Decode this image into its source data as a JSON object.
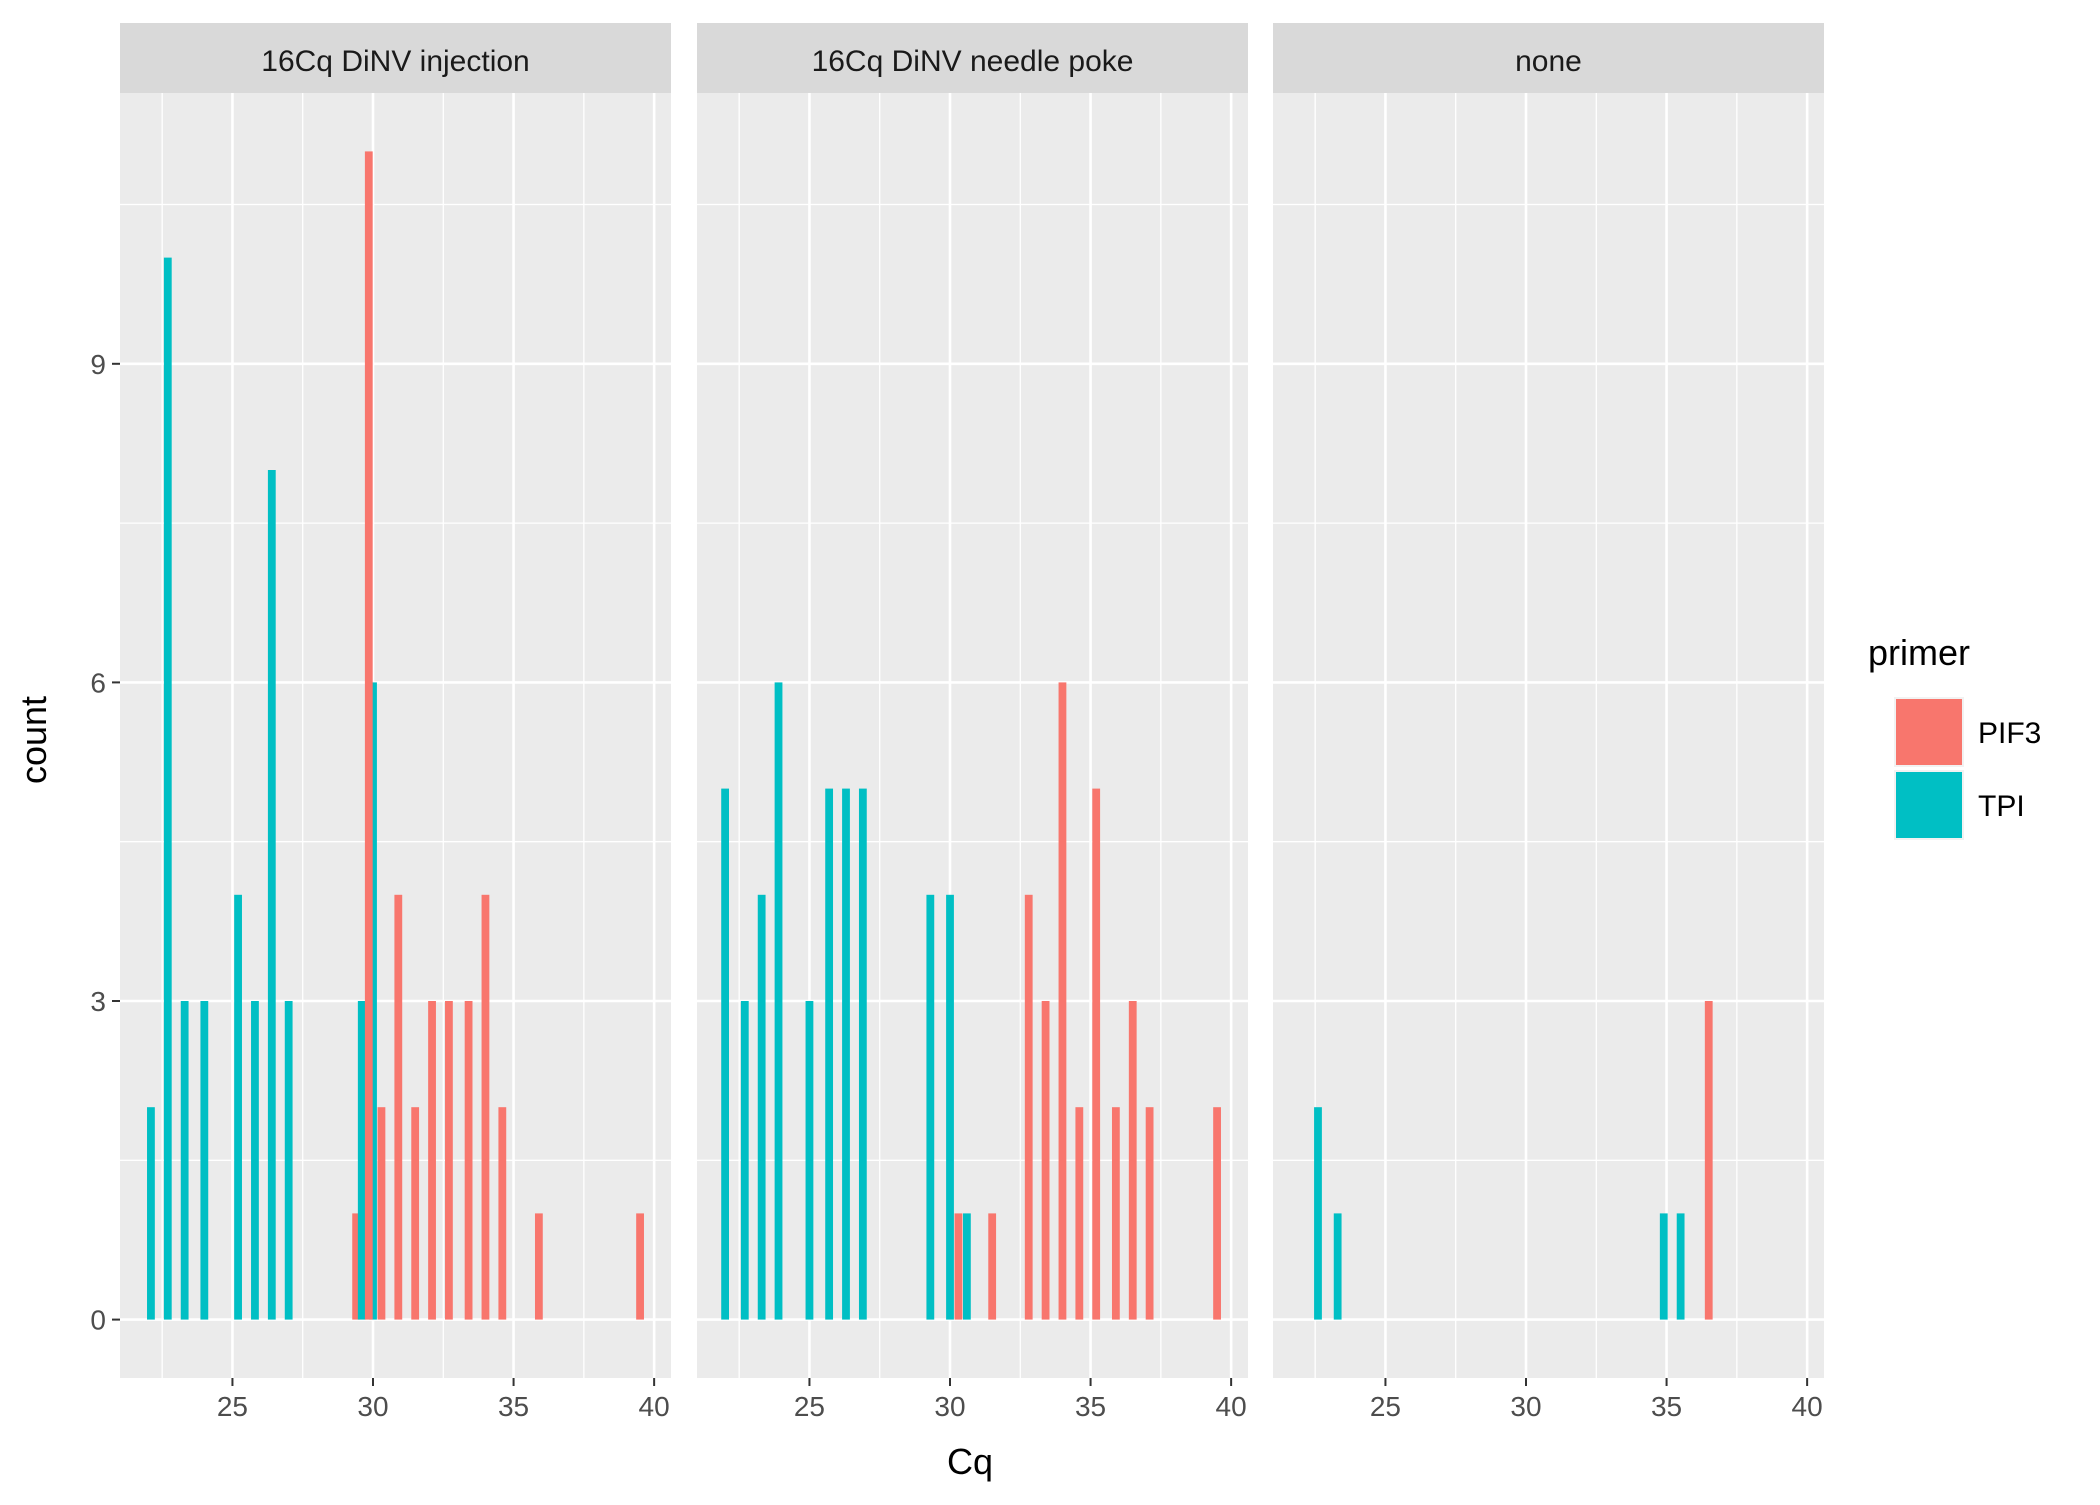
{
  "chart_data": {
    "type": "bar",
    "xlabel": "Cq",
    "ylabel": "count",
    "xlim": [
      21.0,
      40.6
    ],
    "ylim": [
      -0.55,
      11.55
    ],
    "x_ticks": [
      25,
      30,
      35,
      40
    ],
    "x_tick_labels": [
      "25",
      "30",
      "35",
      "40"
    ],
    "x_minor_ticks": [
      22.5,
      27.5,
      32.5,
      37.5
    ],
    "y_ticks": [
      0,
      3,
      6,
      9
    ],
    "y_tick_labels": [
      "0",
      "3",
      "6",
      "9"
    ],
    "y_minor_ticks": [
      1.5,
      4.5,
      7.5,
      10.5
    ],
    "grid": true,
    "legend": {
      "title": "primer",
      "position": "right",
      "entries": [
        {
          "name": "PIF3",
          "color": "#F8766D"
        },
        {
          "name": "TPI",
          "color": "#00BFC4"
        }
      ]
    },
    "colors": {
      "PIF3": "#F8766D",
      "TPI": "#00BFC4"
    },
    "panels": [
      {
        "title": "16Cq DiNV injection",
        "series": [
          {
            "name": "PIF3",
            "x": [
              29.4,
              30.3,
              30.9,
              31.5,
              32.1,
              32.7,
              33.4,
              34.0,
              34.6,
              35.9,
              39.5
            ],
            "values": [
              1,
              2,
              4,
              2,
              3,
              3,
              3,
              4,
              2,
              1,
              1
            ]
          },
          {
            "name": "TPI",
            "x": [
              22.1,
              22.7,
              23.3,
              24.0,
              25.2,
              25.8,
              26.4,
              27.0,
              29.6,
              30.0
            ],
            "values": [
              2,
              10,
              3,
              3,
              4,
              3,
              8,
              3,
              3,
              6
            ]
          }
        ],
        "overlay_bar": {
          "name": "PIF3",
          "x": 29.85,
          "value": 11
        }
      },
      {
        "title": "16Cq DiNV needle poke",
        "series": [
          {
            "name": "PIF3",
            "x": [
              30.3,
              31.5,
              32.8,
              33.4,
              34.0,
              34.6,
              35.2,
              35.9,
              36.5,
              37.1,
              39.5
            ],
            "values": [
              1,
              1,
              4,
              3,
              6,
              2,
              5,
              2,
              3,
              2,
              2
            ]
          },
          {
            "name": "TPI",
            "x": [
              22.0,
              22.7,
              23.3,
              23.9,
              25.0,
              25.7,
              26.3,
              26.9,
              29.3,
              30.0,
              30.6
            ],
            "values": [
              5,
              3,
              4,
              6,
              3,
              5,
              5,
              5,
              4,
              4,
              1
            ]
          }
        ]
      },
      {
        "title": "none",
        "series": [
          {
            "name": "PIF3",
            "x": [
              36.5
            ],
            "values": [
              3
            ]
          },
          {
            "name": "TPI",
            "x": [
              22.6,
              23.3,
              34.9,
              35.5
            ],
            "values": [
              2,
              1,
              1,
              1
            ]
          }
        ]
      }
    ]
  }
}
